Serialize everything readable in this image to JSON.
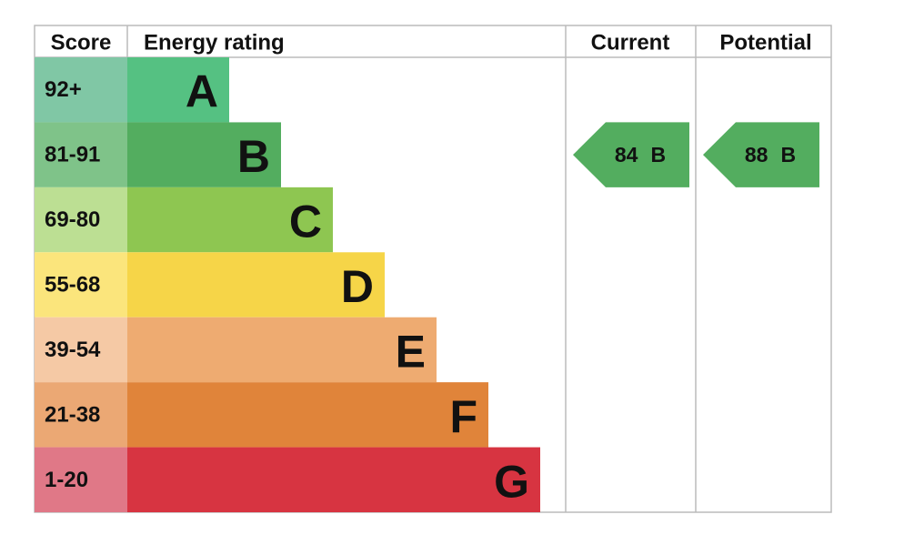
{
  "header": {
    "score": "Score",
    "energy_rating": "Energy rating",
    "current": "Current",
    "potential": "Potential"
  },
  "rows": [
    {
      "score": "92+",
      "letter": "A",
      "score_color": "#80c7a5",
      "bar_color": "#55c182"
    },
    {
      "score": "81-91",
      "letter": "B",
      "score_color": "#7fc389",
      "bar_color": "#53ad5f"
    },
    {
      "score": "69-80",
      "letter": "C",
      "score_color": "#bcdf93",
      "bar_color": "#8ec651"
    },
    {
      "score": "55-68",
      "letter": "D",
      "score_color": "#fbe57c",
      "bar_color": "#f6d548"
    },
    {
      "score": "39-54",
      "letter": "E",
      "score_color": "#f5c9a5",
      "bar_color": "#eeab71"
    },
    {
      "score": "21-38",
      "letter": "F",
      "score_color": "#eba874",
      "bar_color": "#e0843a"
    },
    {
      "score": "1-20",
      "letter": "G",
      "score_color": "#e07887",
      "bar_color": "#d73441"
    }
  ],
  "current": {
    "score": 84,
    "rating": "B"
  },
  "potential": {
    "score": 88,
    "rating": "B"
  }
}
